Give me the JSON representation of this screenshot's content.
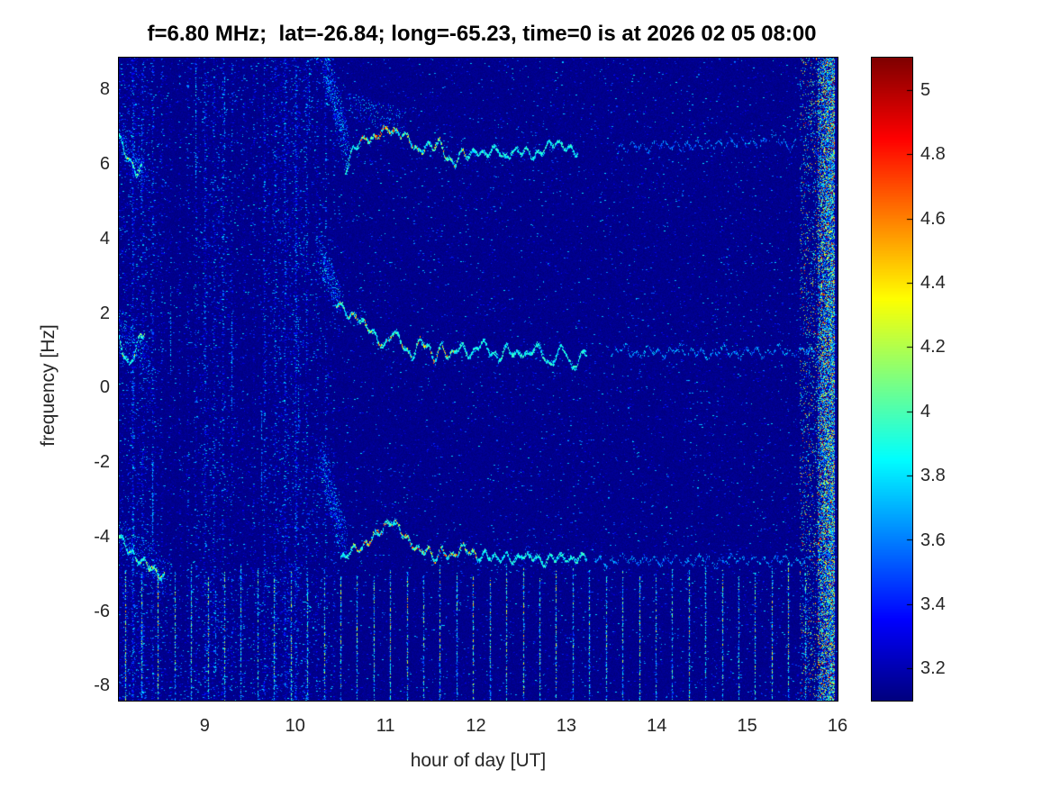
{
  "chart": {
    "title": "f=6.80 MHz;  lat=-26.84; long=-65.23, time=0 is at 2026 02 05 08:00",
    "xlabel": "hour of day [UT]",
    "ylabel": "frequency [Hz]",
    "x_tick_labels": [
      "9",
      "10",
      "11",
      "12",
      "13",
      "14",
      "15",
      "16"
    ],
    "x_tick_values": [
      9,
      10,
      11,
      12,
      13,
      14,
      15,
      16
    ],
    "y_tick_labels": [
      "8",
      "6",
      "4",
      "2",
      "0",
      "-2",
      "-4",
      "-6",
      "-8"
    ],
    "y_tick_values": [
      8,
      6,
      4,
      2,
      0,
      -2,
      -4,
      -6,
      -8
    ],
    "colorbar_tick_labels": [
      "5",
      "4.8",
      "4.6",
      "4.4",
      "4.2",
      "4",
      "3.8",
      "3.6",
      "3.4",
      "3.2"
    ],
    "colorbar_tick_values": [
      5,
      4.8,
      4.6,
      4.4,
      4.2,
      4,
      3.8,
      3.6,
      3.4,
      3.2
    ]
  },
  "chart_data": {
    "type": "heatmap",
    "title": "f=6.80 MHz;  lat=-26.84; long=-65.23, time=0 is at 2026 02 05 08:00",
    "xlabel": "hour of day [UT]",
    "ylabel": "frequency [Hz]",
    "xlim": [
      8.05,
      16.0
    ],
    "ylim": [
      -8.4,
      8.85
    ],
    "clim": [
      3.1,
      5.1
    ],
    "colormap": "jet",
    "background_value": 3.12,
    "legend": "colorbar right, values 3.2 to 5",
    "features": {
      "noise": {
        "early_end": 10.45,
        "p_early": 0.05,
        "p_late": 0.022
      },
      "faint_columns": [
        8.2,
        8.31,
        8.42,
        8.52,
        8.62,
        8.72,
        8.81,
        8.9,
        9.0,
        9.1,
        9.2,
        9.3,
        9.42,
        9.53,
        9.65,
        9.77,
        9.88,
        10.0,
        10.12,
        10.23,
        10.33,
        10.42
      ],
      "bright_columns": [
        {
          "h": 8.9,
          "a": 8.6,
          "b": 5.3,
          "v": 4.0
        },
        {
          "h": 9.22,
          "a": 8.4,
          "b": 6.4,
          "v": 3.85
        },
        {
          "h": 8.62,
          "a": 2.7,
          "b": 0.3,
          "v": 3.9
        },
        {
          "h": 9.3,
          "a": 2.0,
          "b": -0.8,
          "v": 3.75
        },
        {
          "h": 10.03,
          "a": 1.8,
          "b": -1.2,
          "v": 3.8
        },
        {
          "h": 8.42,
          "a": -1.8,
          "b": -4.2,
          "v": 3.75
        },
        {
          "h": 9.12,
          "a": -5.3,
          "b": -7.6,
          "v": 3.85
        },
        {
          "h": 8.3,
          "a": 7.2,
          "b": 4.8,
          "v": 3.7
        },
        {
          "h": 9.62,
          "a": -0.5,
          "b": -3.0,
          "v": 3.7
        },
        {
          "h": 10.15,
          "a": 8.7,
          "b": 6.8,
          "v": 3.8
        }
      ],
      "plumes": [
        {
          "x0": 10.32,
          "y0": 8.8,
          "x1": 10.58,
          "y1": 6.4,
          "spread": 0.5,
          "n": 700
        },
        {
          "x0": 10.6,
          "y0": 7.6,
          "x1": 11.2,
          "y1": 7.1,
          "spread": 0.35,
          "n": 250
        },
        {
          "x0": 10.28,
          "y0": 3.5,
          "x1": 10.5,
          "y1": 2.3,
          "spread": 0.4,
          "n": 350
        },
        {
          "x0": 10.28,
          "y0": -1.8,
          "x1": 10.55,
          "y1": -4.2,
          "spread": 0.5,
          "n": 600
        },
        {
          "x0": 8.05,
          "y0": 6.9,
          "x1": 8.35,
          "y1": 5.6,
          "spread": 0.4,
          "n": 250
        },
        {
          "x0": 8.05,
          "y0": 1.6,
          "x1": 8.4,
          "y1": 0.6,
          "spread": 0.4,
          "n": 220
        },
        {
          "x0": 8.05,
          "y0": -3.9,
          "x1": 8.6,
          "y1": -5.1,
          "spread": 0.45,
          "n": 300
        }
      ],
      "stripes": {
        "start": 8.115,
        "step": 0.1835,
        "end": 15.7,
        "top_hz": -4.7
      },
      "right_band": {
        "sparse": [
          15.58,
          15.78
        ],
        "dense": [
          15.78,
          15.965
        ]
      },
      "traces": [
        {
          "name": "upper-trace-left",
          "style": "bright",
          "points": [
            [
              8.05,
              6.75
            ],
            [
              8.09,
              6.55
            ],
            [
              8.13,
              6.2
            ],
            [
              8.18,
              5.95
            ],
            [
              8.24,
              5.8
            ],
            [
              8.3,
              5.95
            ]
          ],
          "hot": [
            {
              "range": [
                8.05,
                8.3
              ],
              "p": 0.15,
              "lo": 4.0,
              "hi": 4.5
            }
          ]
        },
        {
          "name": "upper-trace-main",
          "style": "bright",
          "points": [
            [
              10.55,
              5.85
            ],
            [
              10.62,
              6.3
            ],
            [
              10.7,
              6.55
            ],
            [
              10.78,
              6.75
            ],
            [
              10.88,
              6.7
            ],
            [
              10.95,
              6.85
            ],
            [
              11.05,
              6.95
            ],
            [
              11.12,
              6.9
            ],
            [
              11.2,
              6.8
            ],
            [
              11.28,
              6.55
            ],
            [
              11.36,
              6.35
            ],
            [
              11.44,
              6.55
            ],
            [
              11.52,
              6.45
            ],
            [
              11.6,
              6.55
            ],
            [
              11.68,
              6.2
            ],
            [
              11.76,
              6.05
            ],
            [
              11.84,
              6.3
            ],
            [
              11.92,
              6.2
            ],
            [
              12.0,
              6.45
            ],
            [
              12.08,
              6.25
            ],
            [
              12.16,
              6.3
            ],
            [
              12.24,
              6.45
            ],
            [
              12.32,
              6.2
            ],
            [
              12.4,
              6.35
            ],
            [
              12.48,
              6.3
            ],
            [
              12.56,
              6.4
            ],
            [
              12.64,
              6.25
            ],
            [
              12.72,
              6.3
            ],
            [
              12.8,
              6.5
            ],
            [
              12.88,
              6.65
            ],
            [
              12.96,
              6.55
            ],
            [
              13.04,
              6.35
            ],
            [
              13.12,
              6.3
            ]
          ],
          "hot": [
            {
              "range": [
                10.72,
                11.3
              ],
              "p": 0.33,
              "lo": 4.2,
              "hi": 5.05
            },
            {
              "range": [
                11.3,
                11.95
              ],
              "p": 0.14,
              "lo": 4.0,
              "hi": 4.6
            }
          ]
        },
        {
          "name": "upper-trace-faint",
          "style": "faint",
          "skip": 0.58,
          "gain": 0.28,
          "points": [
            [
              13.55,
              6.45
            ],
            [
              13.7,
              6.55
            ],
            [
              13.85,
              6.4
            ],
            [
              14.0,
              6.6
            ],
            [
              14.1,
              6.45
            ],
            [
              14.25,
              6.55
            ],
            [
              14.4,
              6.45
            ],
            [
              14.55,
              6.6
            ],
            [
              14.7,
              6.5
            ],
            [
              14.85,
              6.65
            ],
            [
              15.0,
              6.55
            ],
            [
              15.15,
              6.6
            ],
            [
              15.3,
              6.75
            ],
            [
              15.45,
              6.5
            ],
            [
              15.55,
              6.6
            ]
          ]
        },
        {
          "name": "middle-trace-left",
          "style": "bright",
          "points": [
            [
              8.05,
              1.35
            ],
            [
              8.1,
              0.95
            ],
            [
              8.16,
              0.6
            ],
            [
              8.22,
              0.95
            ],
            [
              8.28,
              1.3
            ],
            [
              8.33,
              1.5
            ]
          ],
          "hot": [
            {
              "range": [
                8.05,
                8.33
              ],
              "p": 0.12,
              "lo": 3.95,
              "hi": 4.4
            }
          ]
        },
        {
          "name": "middle-trace-main",
          "style": "bright",
          "points": [
            [
              10.45,
              2.35
            ],
            [
              10.52,
              2.1
            ],
            [
              10.6,
              1.9
            ],
            [
              10.68,
              2.0
            ],
            [
              10.75,
              1.75
            ],
            [
              10.82,
              1.55
            ],
            [
              10.9,
              1.3
            ],
            [
              10.98,
              1.15
            ],
            [
              11.06,
              1.5
            ],
            [
              11.14,
              1.35
            ],
            [
              11.22,
              1.0
            ],
            [
              11.3,
              0.9
            ],
            [
              11.38,
              1.3
            ],
            [
              11.46,
              1.05
            ],
            [
              11.54,
              0.8
            ],
            [
              11.62,
              1.2
            ],
            [
              11.7,
              0.75
            ],
            [
              11.78,
              1.05
            ],
            [
              11.86,
              1.15
            ],
            [
              11.94,
              0.85
            ],
            [
              12.02,
              1.1
            ],
            [
              12.1,
              1.2
            ],
            [
              12.18,
              0.95
            ],
            [
              12.26,
              0.8
            ],
            [
              12.34,
              1.05
            ],
            [
              12.42,
              0.9
            ],
            [
              12.5,
              1.0
            ],
            [
              12.58,
              0.85
            ],
            [
              12.66,
              1.1
            ],
            [
              12.74,
              0.95
            ],
            [
              12.82,
              0.6
            ],
            [
              12.9,
              0.95
            ],
            [
              12.98,
              1.05
            ],
            [
              13.06,
              0.5
            ],
            [
              13.14,
              0.85
            ],
            [
              13.22,
              0.95
            ]
          ],
          "hot": [
            {
              "range": [
                10.45,
                11.75
              ],
              "p": 0.2,
              "lo": 4.1,
              "hi": 4.8
            }
          ]
        },
        {
          "name": "middle-trace-faint",
          "style": "faint",
          "skip": 0.45,
          "gain": 0.38,
          "points": [
            [
              13.5,
              0.9
            ],
            [
              13.65,
              1.1
            ],
            [
              13.8,
              0.85
            ],
            [
              13.95,
              1.05
            ],
            [
              14.1,
              0.9
            ],
            [
              14.25,
              1.1
            ],
            [
              14.4,
              0.95
            ],
            [
              14.55,
              0.85
            ],
            [
              14.7,
              1.05
            ],
            [
              14.85,
              0.9
            ],
            [
              15.0,
              1.0
            ],
            [
              15.15,
              0.9
            ],
            [
              15.3,
              1.05
            ],
            [
              15.45,
              0.95
            ],
            [
              15.6,
              1.0
            ],
            [
              15.75,
              0.95
            ]
          ]
        },
        {
          "name": "lower-trace-left",
          "style": "bright",
          "points": [
            [
              8.05,
              -4.05
            ],
            [
              8.15,
              -4.3
            ],
            [
              8.25,
              -4.55
            ],
            [
              8.35,
              -4.75
            ],
            [
              8.45,
              -4.9
            ],
            [
              8.55,
              -5.0
            ]
          ],
          "hot": [
            {
              "range": [
                8.05,
                8.55
              ],
              "p": 0.12,
              "lo": 3.95,
              "hi": 4.4
            }
          ]
        },
        {
          "name": "lower-trace-main",
          "style": "bright",
          "points": [
            [
              10.5,
              -4.65
            ],
            [
              10.58,
              -4.4
            ],
            [
              10.66,
              -4.2
            ],
            [
              10.74,
              -4.35
            ],
            [
              10.82,
              -4.1
            ],
            [
              10.9,
              -3.85
            ],
            [
              10.98,
              -3.7
            ],
            [
              11.06,
              -3.6
            ],
            [
              11.14,
              -3.75
            ],
            [
              11.22,
              -3.95
            ],
            [
              11.3,
              -4.2
            ],
            [
              11.38,
              -4.45
            ],
            [
              11.46,
              -4.3
            ],
            [
              11.54,
              -4.55
            ],
            [
              11.62,
              -4.35
            ],
            [
              11.7,
              -4.6
            ],
            [
              11.78,
              -4.4
            ],
            [
              11.86,
              -4.2
            ],
            [
              11.94,
              -4.45
            ],
            [
              12.02,
              -4.6
            ],
            [
              12.1,
              -4.4
            ],
            [
              12.18,
              -4.5
            ],
            [
              12.26,
              -4.65
            ],
            [
              12.34,
              -4.5
            ],
            [
              12.42,
              -4.6
            ],
            [
              12.5,
              -4.45
            ],
            [
              12.58,
              -4.6
            ],
            [
              12.66,
              -4.5
            ],
            [
              12.74,
              -4.65
            ],
            [
              12.82,
              -4.55
            ],
            [
              12.9,
              -4.6
            ],
            [
              12.98,
              -4.5
            ],
            [
              13.06,
              -4.6
            ],
            [
              13.14,
              -4.55
            ],
            [
              13.22,
              -4.6
            ]
          ],
          "hot": [
            {
              "range": [
                10.6,
                12.0
              ],
              "p": 0.26,
              "lo": 4.1,
              "hi": 4.9
            }
          ]
        },
        {
          "name": "lower-trace-faint",
          "style": "faint",
          "skip": 0.5,
          "gain": 0.32,
          "points": [
            [
              13.3,
              -4.6
            ],
            [
              13.5,
              -4.65
            ],
            [
              13.7,
              -4.55
            ],
            [
              13.9,
              -4.65
            ],
            [
              14.1,
              -4.6
            ],
            [
              14.3,
              -4.65
            ],
            [
              14.5,
              -4.6
            ],
            [
              14.7,
              -4.65
            ],
            [
              14.9,
              -4.55
            ],
            [
              15.1,
              -4.65
            ],
            [
              15.3,
              -4.6
            ],
            [
              15.5,
              -4.65
            ],
            [
              15.7,
              -4.6
            ]
          ]
        }
      ]
    }
  }
}
